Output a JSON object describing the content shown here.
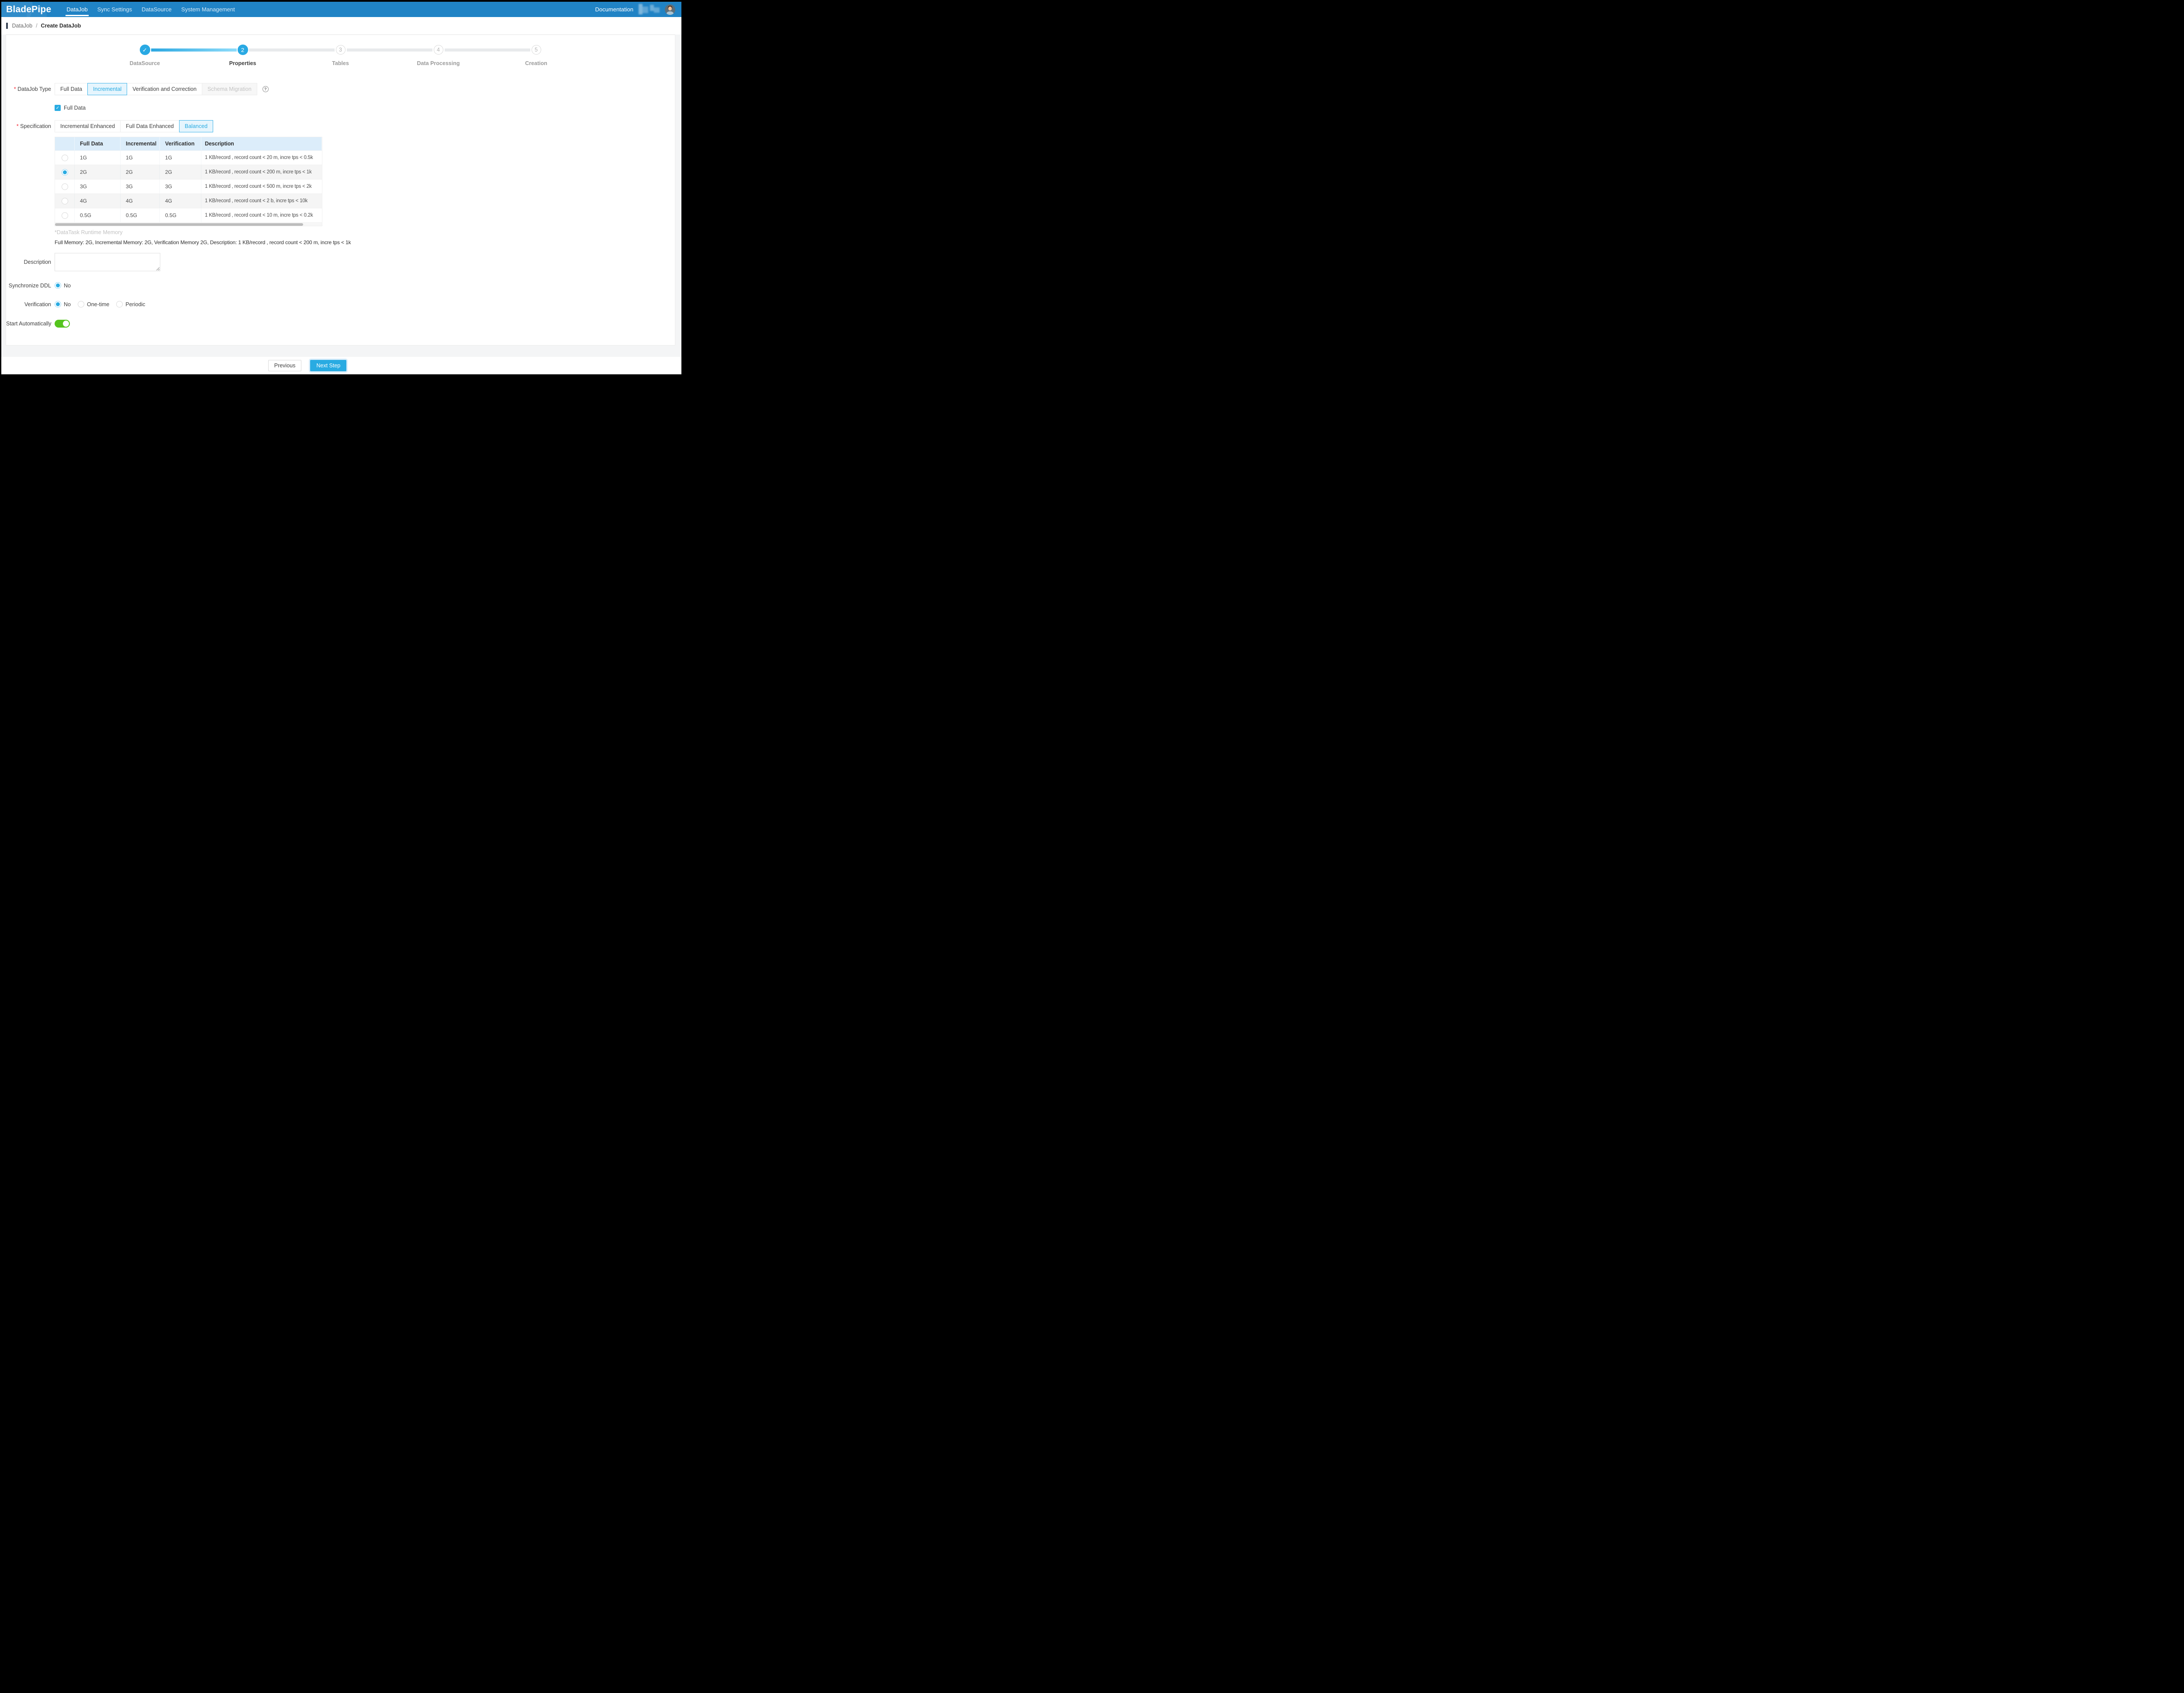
{
  "nav": {
    "logo": "BladePipe",
    "items": [
      {
        "label": "DataJob",
        "active": true
      },
      {
        "label": "Sync Settings",
        "active": false
      },
      {
        "label": "DataSource",
        "active": false
      },
      {
        "label": "System Management",
        "active": false
      }
    ],
    "documentation_label": "Documentation"
  },
  "breadcrumb": {
    "parent": "DataJob",
    "separator": "/",
    "current": "Create DataJob"
  },
  "stepper": {
    "steps": [
      {
        "label": "DataSource",
        "status": "done",
        "number": "1"
      },
      {
        "label": "Properties",
        "status": "current",
        "number": "2"
      },
      {
        "label": "Tables",
        "status": "wait",
        "number": "3"
      },
      {
        "label": "Data Processing",
        "status": "wait",
        "number": "4"
      },
      {
        "label": "Creation",
        "status": "wait",
        "number": "5"
      }
    ]
  },
  "icons": {
    "check": "✓",
    "question": "?"
  },
  "form": {
    "datajob_type": {
      "label": "DataJob Type",
      "options": [
        {
          "label": "Full Data",
          "state": "normal"
        },
        {
          "label": "Incremental",
          "state": "selected"
        },
        {
          "label": "Verification and Correction",
          "state": "normal"
        },
        {
          "label": "Schema Migration",
          "state": "disabled"
        }
      ],
      "selected": "Incremental"
    },
    "full_data_checkbox": {
      "label": "Full Data",
      "checked": true
    },
    "specification": {
      "label": "Specification",
      "options": [
        {
          "label": "Incremental Enhanced",
          "state": "normal"
        },
        {
          "label": "Full Data Enhanced",
          "state": "normal"
        },
        {
          "label": "Balanced",
          "state": "selected"
        }
      ],
      "selected": "Balanced"
    },
    "spec_table": {
      "columns": [
        "",
        "Full Data",
        "Incremental",
        "Verification",
        "Description"
      ],
      "rows": [
        {
          "full_data": "1G",
          "incremental": "1G",
          "verification": "1G",
          "description": "1 KB/record , record count < 20 m, incre tps < 0.5k",
          "selected": false
        },
        {
          "full_data": "2G",
          "incremental": "2G",
          "verification": "2G",
          "description": "1 KB/record , record count < 200 m, incre tps < 1k",
          "selected": true
        },
        {
          "full_data": "3G",
          "incremental": "3G",
          "verification": "3G",
          "description": "1 KB/record , record count < 500 m, incre tps < 2k",
          "selected": false
        },
        {
          "full_data": "4G",
          "incremental": "4G",
          "verification": "4G",
          "description": "1 KB/record , record count < 2 b, incre tps < 10k",
          "selected": false
        },
        {
          "full_data": "0.5G",
          "incremental": "0.5G",
          "verification": "0.5G",
          "description": "1 KB/record , record count < 10 m, incre tps < 0.2k",
          "selected": false
        }
      ]
    },
    "runtime_note": "*DataTask Runtime Memory",
    "summary": "Full Memory: 2G, Incremental Memory: 2G, Verification Memory 2G, Description: 1 KB/record , record count < 200 m, incre tps < 1k",
    "description": {
      "label": "Description",
      "value": ""
    },
    "synchronize_ddl": {
      "label": "Synchronize DDL",
      "options": [
        {
          "label": "No",
          "selected": true
        }
      ]
    },
    "verification": {
      "label": "Verification",
      "options": [
        {
          "label": "No",
          "selected": true
        },
        {
          "label": "One-time",
          "selected": false
        },
        {
          "label": "Periodic",
          "selected": false
        }
      ]
    },
    "start_automatically": {
      "label": "Start Automatically",
      "enabled": true
    }
  },
  "footer": {
    "previous_label": "Previous",
    "next_label": "Next Step"
  },
  "colors": {
    "nav_blue": "#2083c5",
    "accent_blue": "#29abe2",
    "selected_bg": "#e6f5fd",
    "table_header_bg": "#dcedfa",
    "toggle_green": "#55c41e",
    "required_red": "#f5222d"
  }
}
